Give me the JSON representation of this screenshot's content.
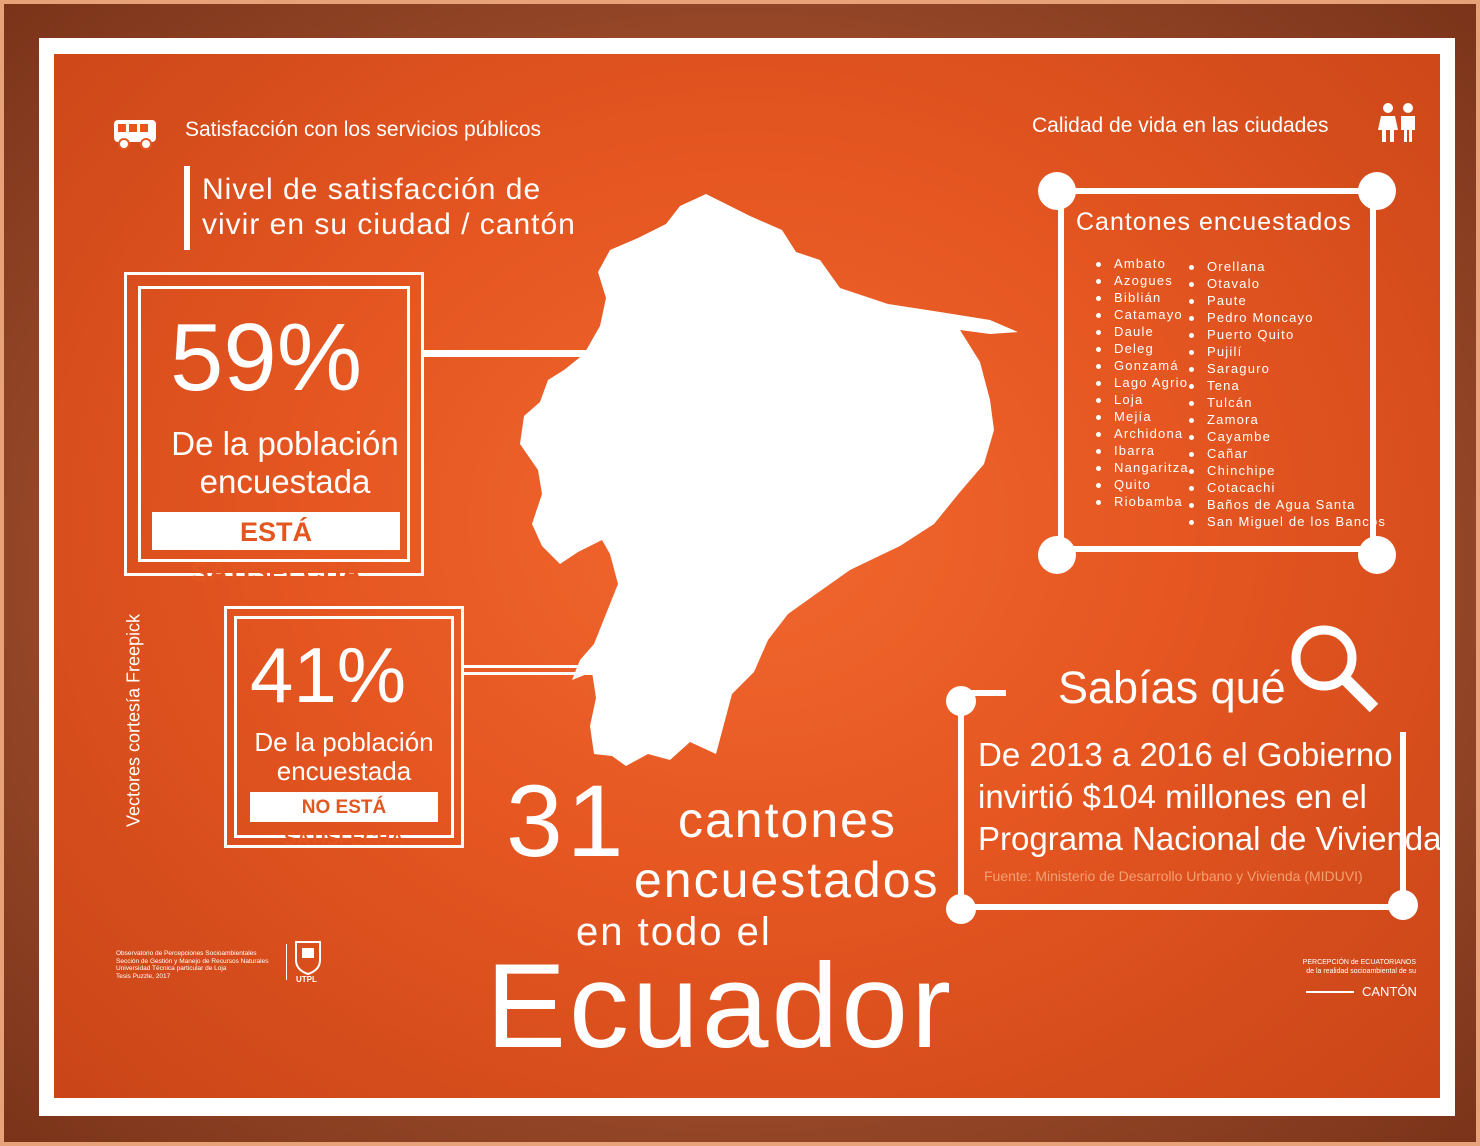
{
  "header": {
    "left_title": "Satisfacción con los servicios públicos",
    "right_title": "Calidad de vida en las ciudades"
  },
  "subtitle": "Nivel de satisfacción de\nvivir en su ciudad / cantón",
  "stat_satisfied": {
    "percent": "59%",
    "population": "De la población\nencuestada",
    "status": "ESTÁ SATISFECHA"
  },
  "stat_unsatisfied": {
    "percent": "41%",
    "population": "De la población\nencuestada",
    "status": "NO ESTÁ SATISFECHA"
  },
  "cantones": {
    "title": "Cantones encuestados",
    "column1": [
      "Ambato",
      "Azogues",
      "Biblián",
      "Catamayo",
      "Daule",
      "Deleg",
      "Gonzamá",
      "Lago Agrio",
      "Loja",
      "Mejía",
      "Archidona",
      "Ibarra",
      "Nangaritza",
      "Quito",
      "Riobamba"
    ],
    "column2": [
      "Orellana",
      "Otavalo",
      "Paute",
      "Pedro Moncayo",
      "Puerto Quito",
      "Pujilí",
      "Saraguro",
      "Tena",
      "Tulcán",
      "Zamora",
      "Cayambe",
      "Cañar",
      "Chinchipe",
      "Cotacachi",
      "Baños de Agua Santa",
      "San Miguel de los Bancos"
    ]
  },
  "sabias": {
    "title": "Sabías qué",
    "fact": "De 2013 a 2016 el Gobierno\ninvirtió $104 millones en el\nPrograma Nacional de Vivienda",
    "source": "Fuente: Ministerio de Desarrollo Urbano y Vivienda (MIDUVI)"
  },
  "headline": {
    "number": "31",
    "line1": "cantones",
    "line2": "encuestados",
    "line3": "en todo el",
    "country": "Ecuador"
  },
  "vertical_credit": "Vectores cortesía Freepick",
  "footer": {
    "credits": "Observatorio de Percepciones Socioambientales\nSección de Gestión y Manejo de Recursos Naturales\nUniversidad Técnica particular de Loja\nTesis Puzzle, 2017",
    "logo_text": "UTPL",
    "percepcion": "PERCEPCIÓN de ECUATORIANOS\nde la realidad socioambiental de su",
    "canton": "CANTÓN"
  },
  "colors": {
    "background": "#e55621",
    "text": "#ffffff",
    "source_text": "#f3a072"
  },
  "icons": [
    "bus-icon",
    "people-icon",
    "search-icon"
  ]
}
